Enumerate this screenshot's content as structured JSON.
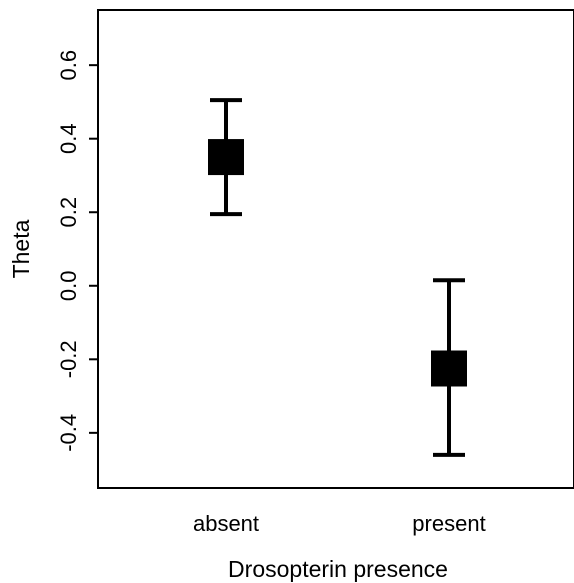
{
  "chart_data": {
    "type": "scatter",
    "xlabel": "Drosopterin presence",
    "ylabel": "Theta",
    "categories": [
      "absent",
      "present"
    ],
    "series": [
      {
        "points": [
          {
            "category": "absent",
            "y": 0.35,
            "lower": 0.195,
            "upper": 0.505
          },
          {
            "category": "present",
            "y": -0.225,
            "lower": -0.46,
            "upper": 0.015
          }
        ]
      }
    ],
    "ylim": [
      -0.55,
      0.75
    ],
    "yticks": [
      -0.4,
      -0.2,
      0.0,
      0.2,
      0.4,
      0.6
    ],
    "ytick_labels": [
      "-0.4",
      "-0.2",
      "0.0",
      "0.2",
      "0.4",
      "0.6"
    ],
    "grid": false,
    "legend": "none"
  }
}
